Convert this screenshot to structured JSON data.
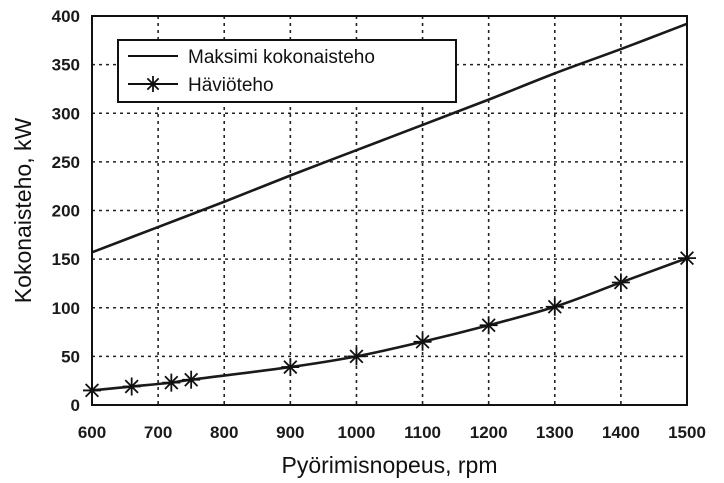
{
  "chart_data": {
    "type": "line",
    "xlabel": "Pyörimisnopeus, rpm",
    "ylabel": "Kokonaisteho, kW",
    "xlim": [
      600,
      1500
    ],
    "ylim": [
      0,
      400
    ],
    "x_ticks": [
      600,
      700,
      800,
      900,
      1000,
      1100,
      1200,
      1300,
      1400,
      1500
    ],
    "y_ticks": [
      0,
      50,
      100,
      150,
      200,
      250,
      300,
      350,
      400
    ],
    "grid": true,
    "legend_position": "top-left",
    "series": [
      {
        "name": "Maksimi kokonaisteho",
        "marker": "none",
        "color": "#1a1a1a",
        "x": [
          600,
          700,
          800,
          900,
          1000,
          1100,
          1200,
          1300,
          1400,
          1500
        ],
        "y": [
          157,
          183,
          209,
          236,
          262,
          288,
          314,
          341,
          366,
          392
        ]
      },
      {
        "name": "Häviöteho",
        "marker": "asterisk",
        "color": "#1a1a1a",
        "x": [
          600,
          660,
          720,
          750,
          900,
          1000,
          1100,
          1200,
          1300,
          1400,
          1500
        ],
        "y": [
          15,
          19,
          23,
          26,
          39,
          50,
          65,
          82,
          101,
          126,
          151
        ]
      }
    ]
  }
}
